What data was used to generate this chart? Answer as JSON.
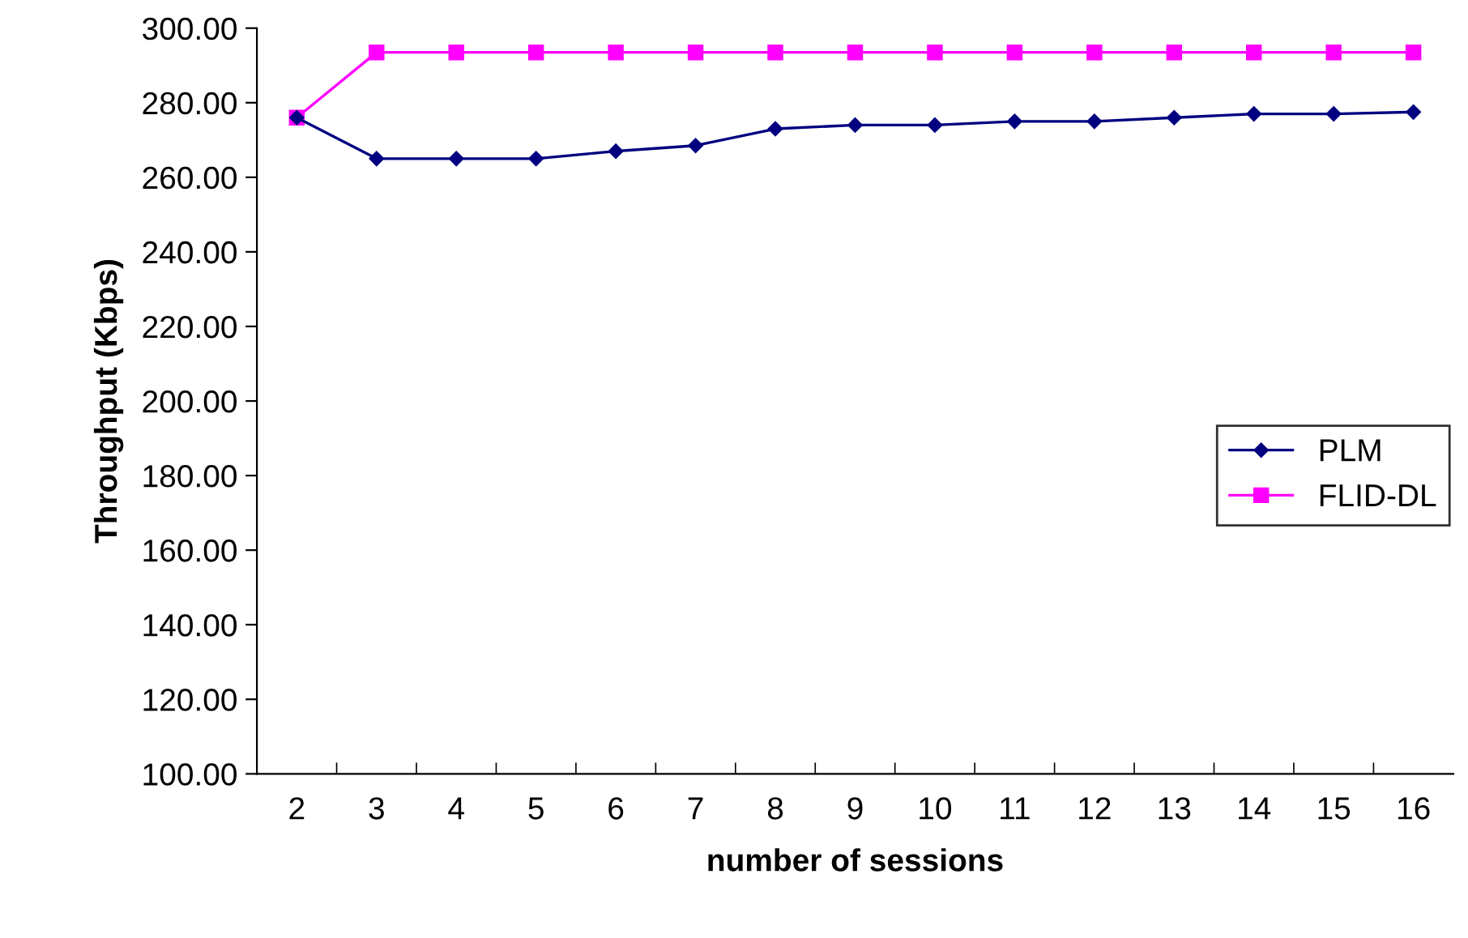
{
  "chart_data": {
    "type": "line",
    "xlabel": "number of sessions",
    "ylabel": "Throughput (Kbps)",
    "categories": [
      "2",
      "3",
      "4",
      "5",
      "6",
      "7",
      "8",
      "9",
      "10",
      "11",
      "12",
      "13",
      "14",
      "15",
      "16"
    ],
    "series": [
      {
        "name": "PLM",
        "color": "#000080",
        "marker": "diamond",
        "values": [
          276,
          265,
          265,
          265,
          267,
          268.5,
          273,
          274,
          274,
          275,
          275,
          276,
          277,
          277,
          277.5
        ]
      },
      {
        "name": "FLID-DL",
        "color": "#ff00ff",
        "marker": "square",
        "values": [
          276,
          293.5,
          293.5,
          293.5,
          293.5,
          293.5,
          293.5,
          293.5,
          293.5,
          293.5,
          293.5,
          293.5,
          293.5,
          293.5,
          293.5
        ]
      }
    ],
    "ylim": [
      100,
      300
    ],
    "yticks": [
      {
        "value": 100,
        "label": "100.00"
      },
      {
        "value": 120,
        "label": "120.00"
      },
      {
        "value": 140,
        "label": "140.00"
      },
      {
        "value": 160,
        "label": "160.00"
      },
      {
        "value": 180,
        "label": "180.00"
      },
      {
        "value": 200,
        "label": "200.00"
      },
      {
        "value": 220,
        "label": "220.00"
      },
      {
        "value": 240,
        "label": "240.00"
      },
      {
        "value": 260,
        "label": "260.00"
      },
      {
        "value": 280,
        "label": "280.00"
      },
      {
        "value": 300,
        "label": "300.00"
      }
    ],
    "grid": false,
    "legend": "right",
    "line_style": "solid"
  }
}
